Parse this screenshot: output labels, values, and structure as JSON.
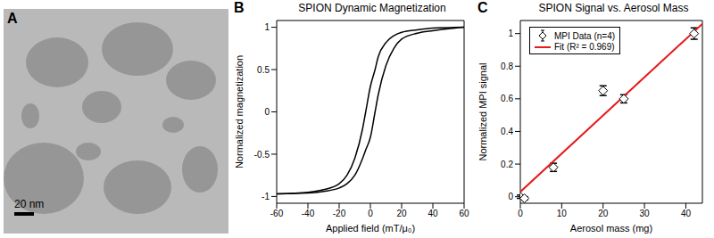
{
  "chart_data": [
    {
      "type": "image",
      "label": "A",
      "annotations": [
        "20 nm"
      ]
    },
    {
      "type": "line",
      "label": "B",
      "title": "SPION Dynamic Magnetization",
      "x_label": "Applied field (mT/μ₀)",
      "y_label": "Normalized magnetization",
      "x": [
        -60,
        -40,
        -30,
        -20,
        -15,
        -10,
        -5,
        -3,
        0,
        3,
        5,
        10,
        15,
        20,
        30,
        40,
        60
      ],
      "series": [
        {
          "color": "#000000",
          "values": [
            -0.97,
            -0.95,
            -0.92,
            -0.85,
            -0.75,
            -0.55,
            -0.2,
            0,
            0.3,
            0.5,
            0.65,
            0.82,
            0.9,
            0.94,
            0.97,
            0.99,
            1.0
          ]
        },
        {
          "color": "#000000",
          "values": [
            -0.97,
            -0.96,
            -0.94,
            -0.9,
            -0.85,
            -0.75,
            -0.55,
            -0.45,
            -0.3,
            0,
            0.2,
            0.55,
            0.75,
            0.86,
            0.93,
            0.96,
            1.0
          ]
        }
      ],
      "xlim": [
        -60,
        60
      ],
      "xticks": [
        -60,
        -40,
        -20,
        0,
        20,
        40,
        60
      ],
      "ylim": [
        -1.08,
        1.08
      ],
      "yticks": [
        -1,
        -0.5,
        0,
        0.5,
        1
      ]
    },
    {
      "type": "scatter",
      "label": "C",
      "title": "SPION Signal vs. Aerosol Mass",
      "x_label": "Aerosol mass (mg)",
      "y_label": "Normalized MPI signal",
      "legend": "top-left",
      "series": [
        {
          "name": "MPI Data (n=4)",
          "type": "scatter",
          "marker": "diamond",
          "color": "#000000",
          "x": [
            0,
            1,
            8,
            20,
            25,
            42
          ],
          "values": [
            0,
            -0.01,
            0.18,
            0.65,
            0.6,
            1.0
          ],
          "errors": [
            0.01,
            0.01,
            0.025,
            0.03,
            0.025,
            0.035
          ]
        },
        {
          "name": "Fit (R² = 0.969)",
          "type": "line",
          "color": "#e41a1c",
          "x": [
            0,
            44
          ],
          "values": [
            0.03,
            1.06
          ]
        }
      ],
      "xlim": [
        0,
        44
      ],
      "xticks": [
        0,
        10,
        20,
        30,
        40
      ],
      "ylim": [
        -0.04,
        1.08
      ],
      "yticks": [
        0,
        0.2,
        0.4,
        0.6,
        0.8,
        1
      ]
    }
  ]
}
